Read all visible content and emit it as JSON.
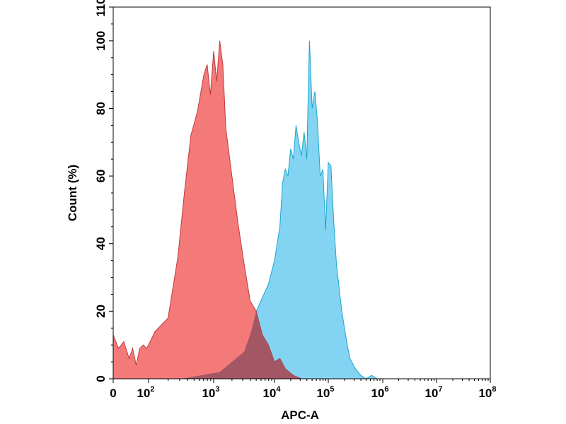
{
  "chart_data": {
    "type": "area",
    "xlabel": "APC-A",
    "ylabel": "Count (%)",
    "x_scale": "biexponential",
    "ylim": [
      0,
      110
    ],
    "yticks": [
      0,
      20,
      40,
      60,
      80,
      100,
      110
    ],
    "xticks": [
      {
        "base": "0",
        "exp": ""
      },
      {
        "base": "10",
        "exp": "2"
      },
      {
        "base": "10",
        "exp": "3"
      },
      {
        "base": "10",
        "exp": "4"
      },
      {
        "base": "10",
        "exp": "5"
      },
      {
        "base": "10",
        "exp": "6"
      },
      {
        "base": "10",
        "exp": "7"
      },
      {
        "base": "10",
        "exp": "8"
      }
    ],
    "grid": false,
    "colors": {
      "red_fill": "#f47a7a",
      "red_stroke": "#c0393b",
      "blue_fill": "#82d4f2",
      "blue_stroke": "#1ea4cc",
      "overlap_fill": "#9a5260"
    },
    "series": [
      {
        "color": "red",
        "log10_x": [
          0.0,
          0.3,
          0.6,
          0.9,
          1.1,
          1.3,
          1.5,
          1.7,
          1.9,
          2.1,
          2.3,
          2.45,
          2.55,
          2.65,
          2.75,
          2.85,
          2.9,
          2.95,
          3.0,
          3.05,
          3.1,
          3.15,
          3.2,
          3.3,
          3.4,
          3.5,
          3.6,
          3.7,
          3.8,
          3.9,
          4.0,
          4.1,
          4.2,
          4.35,
          4.5
        ],
        "values": [
          13,
          9,
          11,
          6,
          9,
          4,
          9,
          10,
          9,
          14,
          18,
          36,
          55,
          72,
          79,
          90,
          93,
          84,
          97,
          88,
          100,
          93,
          74,
          60,
          46,
          34,
          23,
          20,
          13,
          10,
          5,
          6,
          3,
          1,
          0
        ]
      },
      {
        "color": "blue",
        "log10_x": [
          2.5,
          2.8,
          3.1,
          3.3,
          3.5,
          3.6,
          3.7,
          3.8,
          3.9,
          4.0,
          4.05,
          4.1,
          4.15,
          4.2,
          4.25,
          4.3,
          4.35,
          4.4,
          4.45,
          4.5,
          4.55,
          4.6,
          4.65,
          4.7,
          4.75,
          4.8,
          4.85,
          4.9,
          4.95,
          5.0,
          5.05,
          5.1,
          5.15,
          5.2,
          5.25,
          5.3,
          5.35,
          5.4,
          5.5,
          5.6,
          5.7,
          5.8,
          5.9,
          6.0,
          6.2
        ],
        "values": [
          0,
          1,
          2,
          5,
          8,
          13,
          20,
          24,
          28,
          35,
          40,
          45,
          58,
          62,
          60,
          68,
          65,
          75,
          70,
          66,
          73,
          65,
          100,
          80,
          85,
          76,
          60,
          62,
          44,
          64,
          63,
          47,
          34,
          27,
          20,
          15,
          10,
          6,
          3,
          1,
          0,
          1,
          0,
          0,
          0
        ]
      }
    ]
  }
}
